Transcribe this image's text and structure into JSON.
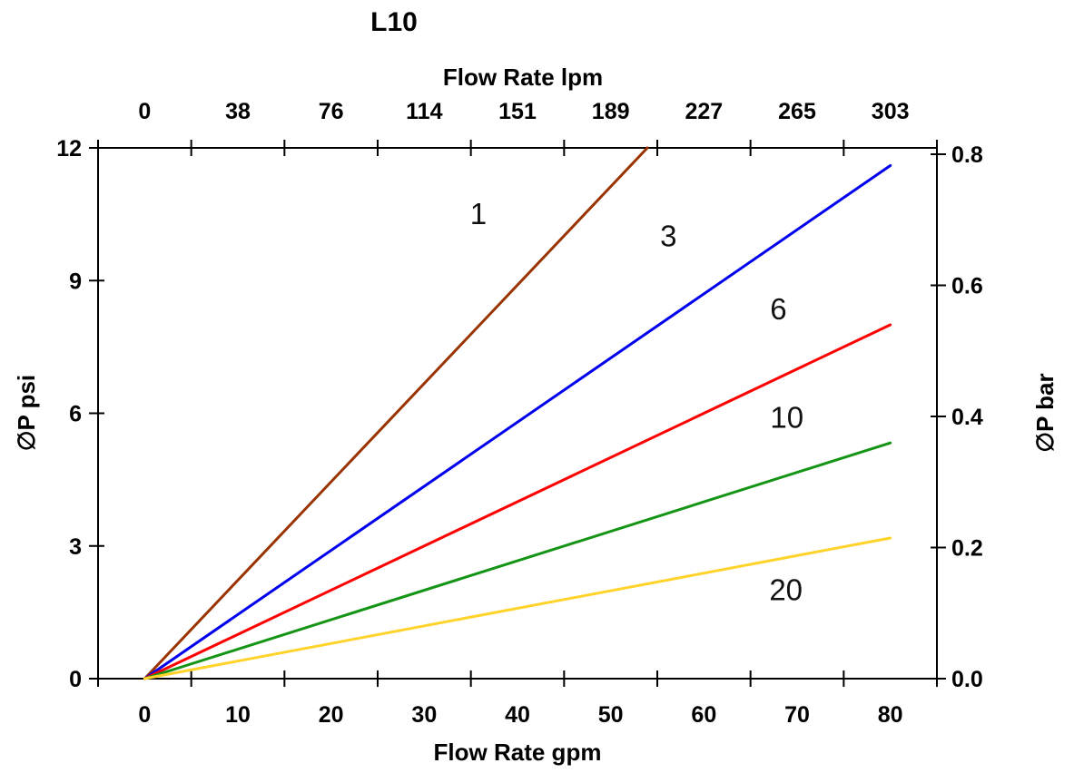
{
  "page": {
    "background_color": "#ffffff",
    "title": "L10"
  },
  "chart_data": {
    "type": "line",
    "title": "L10",
    "grid": false,
    "legend": false,
    "axis_color": "#000000",
    "top_axis": {
      "label": "Flow Rate lpm",
      "tick_labels": [
        "0",
        "38",
        "76",
        "114",
        "151",
        "189",
        "227",
        "265",
        "303"
      ]
    },
    "bottom_axis": {
      "label": "Flow Rate gpm",
      "tick_labels": [
        "0",
        "10",
        "20",
        "30",
        "40",
        "50",
        "60",
        "70",
        "80"
      ],
      "tick_values_gpm": [
        0,
        10,
        20,
        30,
        40,
        50,
        60,
        70,
        80
      ]
    },
    "left_axis": {
      "label": "∅P psi",
      "tick_labels": [
        "0",
        "3",
        "6",
        "9",
        "12"
      ],
      "tick_values_psi": [
        0,
        3,
        6,
        9,
        12
      ],
      "range": [
        0,
        12
      ]
    },
    "right_axis": {
      "label": "∅P bar",
      "tick_labels": [
        "0.0",
        "0.2",
        "0.4",
        "0.6",
        "0.8"
      ],
      "tick_values_bar": [
        0.0,
        0.2,
        0.4,
        0.6,
        0.8
      ],
      "range": [
        0,
        0.8
      ]
    },
    "x_range_gpm": [
      0,
      80
    ],
    "series": [
      {
        "name": "1",
        "color": "#993300",
        "x_gpm": [
          0,
          80
        ],
        "y_psi": [
          0,
          17.8
        ],
        "label": {
          "text": "1",
          "gpm": 35.8,
          "psi": 10.5
        }
      },
      {
        "name": "3",
        "color": "#0000EE",
        "x_gpm": [
          0,
          80
        ],
        "y_psi": [
          0,
          11.6
        ],
        "label": {
          "text": "3",
          "gpm": 56.2,
          "psi": 10.0
        }
      },
      {
        "name": "6",
        "color": "#FE0000",
        "x_gpm": [
          0,
          80
        ],
        "y_psi": [
          0,
          8.0
        ],
        "label": {
          "text": "6",
          "gpm": 68.0,
          "psi": 8.35
        }
      },
      {
        "name": "10",
        "color": "#149414",
        "x_gpm": [
          0,
          80
        ],
        "y_psi": [
          0,
          5.33
        ],
        "label": {
          "text": "10",
          "gpm": 68.9,
          "psi": 5.9
        }
      },
      {
        "name": "20",
        "color": "#FFD32A",
        "x_gpm": [
          0,
          80
        ],
        "y_psi": [
          0,
          3.18
        ],
        "label": {
          "text": "20",
          "gpm": 68.8,
          "psi": 2.0
        }
      }
    ]
  }
}
